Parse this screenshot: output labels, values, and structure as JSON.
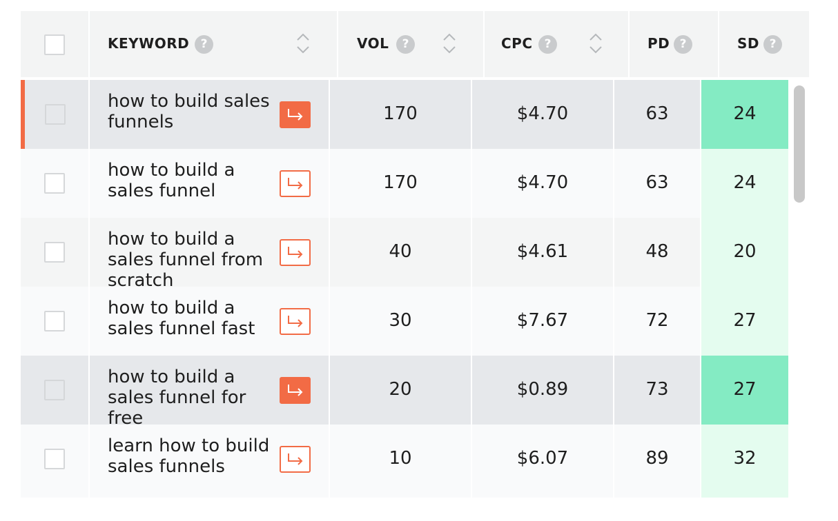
{
  "columns": {
    "keyword": "KEYWORD",
    "vol": "VOL",
    "cpc": "CPC",
    "pd": "PD",
    "sd": "SD",
    "help_glyph": "?"
  },
  "colors": {
    "accent": "#f26b45",
    "sd_light": "#e4fcef",
    "sd_highlight": "#84ebc3"
  },
  "rows": [
    {
      "keyword": "how to build sales funnels",
      "vol": "170",
      "cpc": "$4.70",
      "pd": "63",
      "sd": "24",
      "state": "selected-accent"
    },
    {
      "keyword": "how to build a sales funnel",
      "vol": "170",
      "cpc": "$4.70",
      "pd": "63",
      "sd": "24",
      "state": "plain"
    },
    {
      "keyword": "how to build a sales funnel from scratch",
      "vol": "40",
      "cpc": "$4.61",
      "pd": "48",
      "sd": "20",
      "state": "alt"
    },
    {
      "keyword": "how to build a sales funnel fast",
      "vol": "30",
      "cpc": "$7.67",
      "pd": "72",
      "sd": "27",
      "state": "plain"
    },
    {
      "keyword": "how to build a sales funnel for free",
      "vol": "20",
      "cpc": "$0.89",
      "pd": "73",
      "sd": "27",
      "state": "selected"
    },
    {
      "keyword": "learn how to build sales funnels",
      "vol": "10",
      "cpc": "$6.07",
      "pd": "89",
      "sd": "32",
      "state": "plain"
    }
  ]
}
